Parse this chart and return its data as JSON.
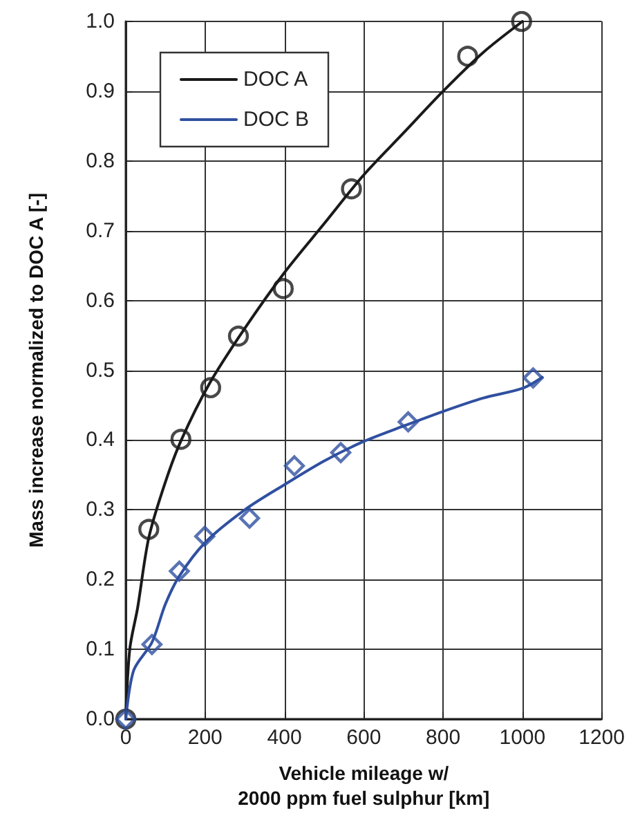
{
  "chart_data": {
    "type": "scatter",
    "xlabel": "Vehicle mileage w/\n2000 ppm fuel sulphur [km]",
    "ylabel": "Mass increase normalized to DOC A [-]",
    "xlim": [
      0,
      1200
    ],
    "xticks": [
      0,
      200,
      400,
      600,
      800,
      1000,
      1200
    ],
    "ylim": [
      0,
      1
    ],
    "yticks": [
      {
        "value": 0,
        "label": "0.0"
      },
      0.1,
      0.2,
      0.3,
      0.4,
      0.5,
      0.6,
      0.7,
      0.8,
      0.9,
      {
        "value": 1,
        "label": "1.0"
      }
    ],
    "grid": true,
    "legend": "top left",
    "line_style": "solid",
    "series": [
      {
        "color": "#1a1a1a",
        "marker": "circle",
        "x": [
          0,
          58,
          139,
          214,
          284,
          397,
          569,
          862,
          998
        ],
        "values": [
          0,
          0.272,
          0.401,
          0.475,
          0.549,
          0.617,
          0.76,
          0.95,
          1.0
        ]
      },
      {
        "color": "#3050a0",
        "marker": "diamond",
        "x": [
          0,
          66,
          135,
          199,
          312,
          425,
          542,
          712,
          1027
        ],
        "values": [
          0,
          0.107,
          0.212,
          0.262,
          0.288,
          0.363,
          0.382,
          0.426,
          0.489
        ]
      },
      {
        "type": "line",
        "name": "DOC A",
        "color": "#1a1a1a",
        "marker": "none",
        "x": [
          0,
          10,
          30,
          58,
          100,
          140,
          210,
          300,
          400,
          500,
          600,
          700,
          800,
          900,
          1000
        ],
        "values": [
          0,
          0.1,
          0.16,
          0.26,
          0.34,
          0.4,
          0.48,
          0.56,
          0.64,
          0.71,
          0.78,
          0.84,
          0.9,
          0.955,
          1.0
        ]
      },
      {
        "type": "line",
        "name": "DOC B",
        "color": "#3050a0",
        "marker": "none",
        "x": [
          0,
          20,
          66,
          100,
          135,
          200,
          300,
          400,
          500,
          600,
          700,
          800,
          900,
          1000,
          1050
        ],
        "values": [
          0,
          0.07,
          0.11,
          0.165,
          0.205,
          0.253,
          0.3,
          0.336,
          0.37,
          0.398,
          0.42,
          0.441,
          0.46,
          0.474,
          0.49
        ]
      }
    ]
  }
}
